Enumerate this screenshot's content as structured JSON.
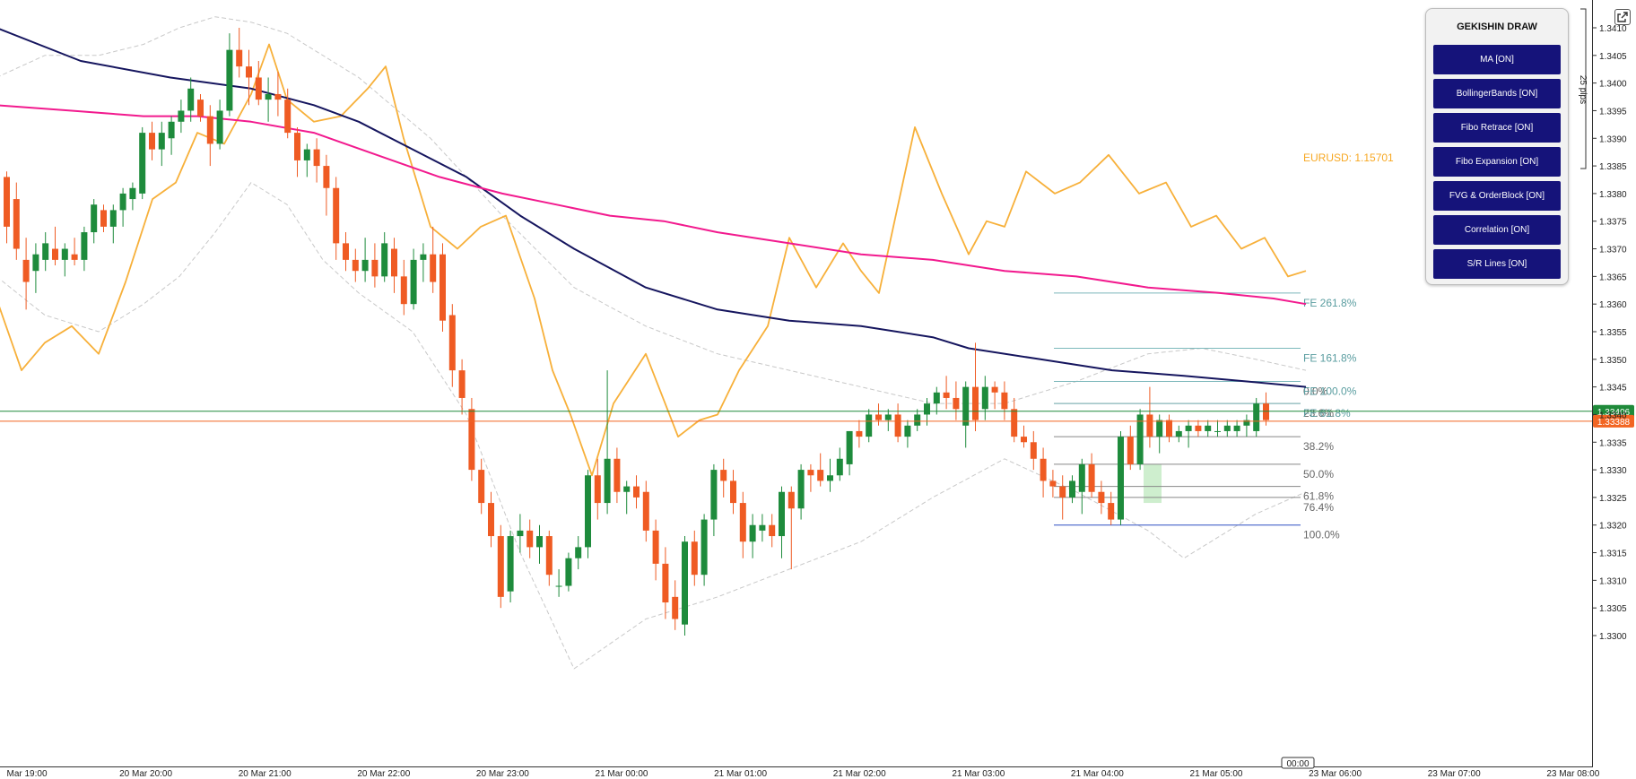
{
  "panel": {
    "title": "GEKISHIN DRAW",
    "buttons": [
      "MA [ON]",
      "BollingerBands [ON]",
      "Fibo Retrace [ON]",
      "Fibo Expansion [ON]",
      "FVG & OrderBlock [ON]",
      "Correlation [ON]",
      "S/R Lines [ON]"
    ]
  },
  "icons": {
    "popout": "popout-icon"
  },
  "chart_data": {
    "type": "candlestick",
    "ylim": [
      1.3297,
      1.3413
    ],
    "y_ticks": [
      "1.3410",
      "1.3405",
      "1.3400",
      "1.3395",
      "1.3390",
      "1.3385",
      "1.3380",
      "1.3375",
      "1.3370",
      "1.3365",
      "1.3360",
      "1.3355",
      "1.3350",
      "1.3345",
      "1.3340",
      "1.3335",
      "1.3330",
      "1.3325",
      "1.3320",
      "1.3315",
      "1.3310",
      "1.3305",
      "1.3300"
    ],
    "x_ticks": [
      "Mar 19:00",
      "20 Mar 20:00",
      "20 Mar 21:00",
      "20 Mar 22:00",
      "20 Mar 23:00",
      "21 Mar 00:00",
      "21 Mar 01:00",
      "21 Mar 02:00",
      "21 Mar 03:00",
      "21 Mar 04:00",
      "21 Mar 05:00",
      "23 Mar 06:00",
      "23 Mar 07:00",
      "23 Mar 08:00"
    ],
    "time_cursor_label": "00:00",
    "pips_label": "25 pips",
    "price_labels": [
      {
        "value": 1.33406,
        "text": "1.33406",
        "color": "#1f8a3a"
      },
      {
        "value": 1.33388,
        "text": "1.33388",
        "color": "#f26522"
      }
    ],
    "correlation_label": "EURUSD: 1.15701",
    "candles": [
      [
        1.3383,
        1.3384,
        1.3371,
        1.3374
      ],
      [
        1.3379,
        1.3382,
        1.3368,
        1.337
      ],
      [
        1.3368,
        1.3372,
        1.3359,
        1.3364
      ],
      [
        1.3366,
        1.3371,
        1.3362,
        1.3369
      ],
      [
        1.3368,
        1.3373,
        1.3366,
        1.3371
      ],
      [
        1.337,
        1.3374,
        1.3367,
        1.3368
      ],
      [
        1.3368,
        1.3371,
        1.3365,
        1.337
      ],
      [
        1.3369,
        1.3372,
        1.3367,
        1.3368
      ],
      [
        1.3368,
        1.3374,
        1.3366,
        1.3373
      ],
      [
        1.3373,
        1.3379,
        1.3371,
        1.3378
      ],
      [
        1.3377,
        1.3378,
        1.3373,
        1.3374
      ],
      [
        1.3374,
        1.3378,
        1.3371,
        1.3377
      ],
      [
        1.3377,
        1.3381,
        1.3374,
        1.338
      ],
      [
        1.3379,
        1.3382,
        1.3377,
        1.3381
      ],
      [
        1.338,
        1.3392,
        1.3379,
        1.3391
      ],
      [
        1.3391,
        1.3393,
        1.3386,
        1.3388
      ],
      [
        1.3388,
        1.3393,
        1.3385,
        1.3391
      ],
      [
        1.339,
        1.3394,
        1.3387,
        1.3393
      ],
      [
        1.3393,
        1.3397,
        1.3391,
        1.3395
      ],
      [
        1.3395,
        1.3401,
        1.3393,
        1.3399
      ],
      [
        1.3397,
        1.3398,
        1.3393,
        1.3394
      ],
      [
        1.3394,
        1.3396,
        1.3385,
        1.3389
      ],
      [
        1.3389,
        1.3397,
        1.3388,
        1.3395
      ],
      [
        1.3395,
        1.3409,
        1.3394,
        1.3406
      ],
      [
        1.3406,
        1.341,
        1.3401,
        1.3403
      ],
      [
        1.3403,
        1.3406,
        1.3396,
        1.3401
      ],
      [
        1.3401,
        1.3404,
        1.3396,
        1.3397
      ],
      [
        1.3397,
        1.3401,
        1.3393,
        1.3398
      ],
      [
        1.3398,
        1.3402,
        1.3394,
        1.3397
      ],
      [
        1.3397,
        1.3399,
        1.339,
        1.3391
      ],
      [
        1.3391,
        1.3392,
        1.3383,
        1.3386
      ],
      [
        1.3386,
        1.3389,
        1.3383,
        1.3388
      ],
      [
        1.3388,
        1.339,
        1.3382,
        1.3385
      ],
      [
        1.3385,
        1.3387,
        1.3376,
        1.3381
      ],
      [
        1.3381,
        1.3383,
        1.3368,
        1.3371
      ],
      [
        1.3371,
        1.3373,
        1.3366,
        1.3368
      ],
      [
        1.3368,
        1.337,
        1.3364,
        1.3366
      ],
      [
        1.3366,
        1.3372,
        1.3364,
        1.3368
      ],
      [
        1.3368,
        1.3371,
        1.3363,
        1.3365
      ],
      [
        1.3365,
        1.3373,
        1.3364,
        1.3371
      ],
      [
        1.337,
        1.3372,
        1.3362,
        1.3365
      ],
      [
        1.3365,
        1.3368,
        1.3358,
        1.336
      ],
      [
        1.336,
        1.337,
        1.3359,
        1.3368
      ],
      [
        1.3368,
        1.3371,
        1.3364,
        1.3369
      ],
      [
        1.3369,
        1.3374,
        1.3362,
        1.3364
      ],
      [
        1.3369,
        1.3371,
        1.3355,
        1.3357
      ],
      [
        1.3358,
        1.336,
        1.3345,
        1.3348
      ],
      [
        1.3348,
        1.335,
        1.334,
        1.3343
      ],
      [
        1.3341,
        1.3343,
        1.3328,
        1.333
      ],
      [
        1.333,
        1.3332,
        1.3322,
        1.3324
      ],
      [
        1.3324,
        1.3326,
        1.3316,
        1.3318
      ],
      [
        1.3318,
        1.332,
        1.3305,
        1.3307
      ],
      [
        1.3308,
        1.3319,
        1.3306,
        1.3318
      ],
      [
        1.3318,
        1.3322,
        1.3315,
        1.3319
      ],
      [
        1.3319,
        1.3321,
        1.3314,
        1.3316
      ],
      [
        1.3316,
        1.332,
        1.3313,
        1.3318
      ],
      [
        1.3318,
        1.3319,
        1.3309,
        1.3311
      ],
      [
        1.3309,
        1.3312,
        1.3307,
        1.3309
      ],
      [
        1.3309,
        1.3315,
        1.3308,
        1.3314
      ],
      [
        1.3314,
        1.3318,
        1.3312,
        1.3316
      ],
      [
        1.3316,
        1.333,
        1.3314,
        1.3329
      ],
      [
        1.3329,
        1.3332,
        1.3321,
        1.3324
      ],
      [
        1.3324,
        1.3348,
        1.3322,
        1.3332
      ],
      [
        1.3332,
        1.3334,
        1.3324,
        1.3326
      ],
      [
        1.3326,
        1.3328,
        1.3322,
        1.3327
      ],
      [
        1.3327,
        1.3329,
        1.3323,
        1.3325
      ],
      [
        1.3326,
        1.3328,
        1.3317,
        1.3319
      ],
      [
        1.3319,
        1.3321,
        1.331,
        1.3313
      ],
      [
        1.3313,
        1.3316,
        1.3303,
        1.3306
      ],
      [
        1.3307,
        1.331,
        1.3301,
        1.3303
      ],
      [
        1.3302,
        1.3318,
        1.33,
        1.3317
      ],
      [
        1.3317,
        1.3319,
        1.3309,
        1.3311
      ],
      [
        1.3311,
        1.3322,
        1.3309,
        1.3321
      ],
      [
        1.3321,
        1.3331,
        1.3318,
        1.333
      ],
      [
        1.333,
        1.3332,
        1.3325,
        1.3328
      ],
      [
        1.3328,
        1.333,
        1.3322,
        1.3324
      ],
      [
        1.3324,
        1.3326,
        1.3314,
        1.3317
      ],
      [
        1.3317,
        1.3322,
        1.3314,
        1.332
      ],
      [
        1.3319,
        1.3322,
        1.3317,
        1.332
      ],
      [
        1.332,
        1.3322,
        1.3316,
        1.3318
      ],
      [
        1.3318,
        1.3327,
        1.3314,
        1.3326
      ],
      [
        1.3326,
        1.3327,
        1.3312,
        1.3323
      ],
      [
        1.3323,
        1.3331,
        1.3321,
        1.333
      ],
      [
        1.333,
        1.3331,
        1.3326,
        1.3329
      ],
      [
        1.333,
        1.3333,
        1.3327,
        1.3328
      ],
      [
        1.3328,
        1.3332,
        1.3326,
        1.3329
      ],
      [
        1.3329,
        1.3334,
        1.3328,
        1.3332
      ],
      [
        1.3331,
        1.3337,
        1.3329,
        1.3337
      ],
      [
        1.3337,
        1.3339,
        1.3334,
        1.3336
      ],
      [
        1.3336,
        1.3341,
        1.3335,
        1.334
      ],
      [
        1.334,
        1.3342,
        1.3338,
        1.3339
      ],
      [
        1.3339,
        1.3341,
        1.3337,
        1.334
      ],
      [
        1.334,
        1.3342,
        1.3335,
        1.3336
      ],
      [
        1.3336,
        1.3339,
        1.3334,
        1.3338
      ],
      [
        1.3338,
        1.3341,
        1.3337,
        1.334
      ],
      [
        1.334,
        1.3343,
        1.3338,
        1.3342
      ],
      [
        1.3342,
        1.3345,
        1.334,
        1.3344
      ],
      [
        1.3344,
        1.3347,
        1.3341,
        1.3343
      ],
      [
        1.3343,
        1.3346,
        1.3339,
        1.3341
      ],
      [
        1.3338,
        1.3346,
        1.3334,
        1.3345
      ],
      [
        1.3345,
        1.3353,
        1.3337,
        1.3339
      ],
      [
        1.3341,
        1.3347,
        1.3339,
        1.3345
      ],
      [
        1.3345,
        1.3346,
        1.3341,
        1.3344
      ],
      [
        1.3344,
        1.3346,
        1.3339,
        1.3341
      ],
      [
        1.3341,
        1.3343,
        1.3335,
        1.3336
      ],
      [
        1.3336,
        1.3338,
        1.3334,
        1.3335
      ],
      [
        1.3335,
        1.3337,
        1.333,
        1.3332
      ],
      [
        1.3332,
        1.3334,
        1.3325,
        1.3328
      ],
      [
        1.3328,
        1.333,
        1.3325,
        1.3327
      ],
      [
        1.3327,
        1.3329,
        1.3321,
        1.3325
      ],
      [
        1.3325,
        1.3329,
        1.3324,
        1.3328
      ],
      [
        1.3326,
        1.3332,
        1.3322,
        1.3331
      ],
      [
        1.3331,
        1.3333,
        1.3325,
        1.3326
      ],
      [
        1.3326,
        1.3328,
        1.3322,
        1.3324
      ],
      [
        1.3324,
        1.3326,
        1.332,
        1.3321
      ],
      [
        1.3321,
        1.3337,
        1.332,
        1.3336
      ],
      [
        1.3336,
        1.3338,
        1.333,
        1.3331
      ],
      [
        1.3331,
        1.3341,
        1.333,
        1.334
      ],
      [
        1.334,
        1.3345,
        1.3334,
        1.3336
      ],
      [
        1.3336,
        1.334,
        1.3333,
        1.3339
      ],
      [
        1.3339,
        1.334,
        1.3335,
        1.3336
      ],
      [
        1.3336,
        1.3338,
        1.3335,
        1.3337
      ],
      [
        1.3337,
        1.3339,
        1.3334,
        1.3338
      ],
      [
        1.3338,
        1.3339,
        1.3336,
        1.3337
      ],
      [
        1.3337,
        1.3339,
        1.3336,
        1.3338
      ],
      [
        1.3337,
        1.3339,
        1.3336,
        1.3337
      ],
      [
        1.3337,
        1.3339,
        1.3336,
        1.3338
      ],
      [
        1.3337,
        1.3339,
        1.3336,
        1.3338
      ],
      [
        1.3338,
        1.334,
        1.3336,
        1.3339
      ],
      [
        1.3337,
        1.3343,
        1.3336,
        1.3342
      ],
      [
        1.3342,
        1.3344,
        1.3338,
        1.3339
      ]
    ],
    "ma_slow": [
      [
        -2,
        1.341
      ],
      [
        45,
        1.3404
      ],
      [
        95,
        1.3401
      ],
      [
        140,
        1.3399
      ],
      [
        175,
        1.3396
      ],
      [
        200,
        1.3393
      ],
      [
        230,
        1.3388
      ],
      [
        260,
        1.3383
      ],
      [
        290,
        1.3376
      ],
      [
        320,
        1.337
      ],
      [
        360,
        1.3363
      ],
      [
        400,
        1.3359
      ],
      [
        440,
        1.3357
      ],
      [
        480,
        1.3356
      ],
      [
        520,
        1.3354
      ],
      [
        540,
        1.3352
      ],
      [
        580,
        1.335
      ],
      [
        620,
        1.3348
      ],
      [
        660,
        1.3347
      ],
      [
        695,
        1.3346
      ],
      [
        728,
        1.3345
      ]
    ],
    "ma_fast": [
      [
        -2,
        1.3396
      ],
      [
        40,
        1.3395
      ],
      [
        80,
        1.3394
      ],
      [
        110,
        1.3394
      ],
      [
        140,
        1.3393
      ],
      [
        175,
        1.3391
      ],
      [
        210,
        1.3387
      ],
      [
        245,
        1.3383
      ],
      [
        280,
        1.338
      ],
      [
        310,
        1.3378
      ],
      [
        340,
        1.3376
      ],
      [
        370,
        1.3375
      ],
      [
        400,
        1.3373
      ],
      [
        440,
        1.3371
      ],
      [
        480,
        1.3369
      ],
      [
        520,
        1.3368
      ],
      [
        560,
        1.3366
      ],
      [
        600,
        1.3365
      ],
      [
        640,
        1.3363
      ],
      [
        680,
        1.3362
      ],
      [
        710,
        1.3361
      ],
      [
        728,
        1.336
      ]
    ],
    "bb_upper": [
      [
        -2,
        1.3401
      ],
      [
        25,
        1.3405
      ],
      [
        55,
        1.3405
      ],
      [
        80,
        1.3407
      ],
      [
        100,
        1.341
      ],
      [
        120,
        1.3412
      ],
      [
        140,
        1.3411
      ],
      [
        160,
        1.3409
      ],
      [
        200,
        1.3401
      ],
      [
        240,
        1.339
      ],
      [
        280,
        1.3376
      ],
      [
        320,
        1.3363
      ],
      [
        360,
        1.3356
      ],
      [
        400,
        1.3351
      ],
      [
        440,
        1.3348
      ],
      [
        480,
        1.3345
      ],
      [
        520,
        1.3342
      ],
      [
        560,
        1.3342
      ],
      [
        600,
        1.3346
      ],
      [
        640,
        1.3351
      ],
      [
        670,
        1.3352
      ],
      [
        700,
        1.335
      ],
      [
        728,
        1.3348
      ]
    ],
    "bb_lower": [
      [
        -2,
        1.3365
      ],
      [
        25,
        1.3358
      ],
      [
        55,
        1.3355
      ],
      [
        80,
        1.336
      ],
      [
        100,
        1.3365
      ],
      [
        120,
        1.3373
      ],
      [
        140,
        1.3382
      ],
      [
        160,
        1.3378
      ],
      [
        180,
        1.3368
      ],
      [
        200,
        1.3362
      ],
      [
        230,
        1.3355
      ],
      [
        260,
        1.334
      ],
      [
        290,
        1.3315
      ],
      [
        320,
        1.3294
      ],
      [
        360,
        1.3303
      ],
      [
        400,
        1.3307
      ],
      [
        440,
        1.3312
      ],
      [
        480,
        1.3317
      ],
      [
        520,
        1.3325
      ],
      [
        560,
        1.3332
      ],
      [
        600,
        1.3326
      ],
      [
        640,
        1.3319
      ],
      [
        660,
        1.3314
      ],
      [
        680,
        1.3318
      ],
      [
        700,
        1.3322
      ],
      [
        728,
        1.3326
      ]
    ],
    "correlation_line": [
      [
        -2,
        1.3361
      ],
      [
        12,
        1.3348
      ],
      [
        25,
        1.3353
      ],
      [
        40,
        1.3356
      ],
      [
        55,
        1.3351
      ],
      [
        70,
        1.3364
      ],
      [
        85,
        1.3379
      ],
      [
        98,
        1.3382
      ],
      [
        110,
        1.3391
      ],
      [
        125,
        1.3389
      ],
      [
        140,
        1.3398
      ],
      [
        150,
        1.3407
      ],
      [
        160,
        1.3397
      ],
      [
        175,
        1.3393
      ],
      [
        190,
        1.3394
      ],
      [
        205,
        1.3399
      ],
      [
        215,
        1.3403
      ],
      [
        225,
        1.339
      ],
      [
        240,
        1.3374
      ],
      [
        255,
        1.337
      ],
      [
        268,
        1.3374
      ],
      [
        282,
        1.3376
      ],
      [
        298,
        1.3361
      ],
      [
        308,
        1.3348
      ],
      [
        318,
        1.334
      ],
      [
        330,
        1.3329
      ],
      [
        342,
        1.3342
      ],
      [
        360,
        1.3351
      ],
      [
        378,
        1.3336
      ],
      [
        390,
        1.3339
      ],
      [
        400,
        1.334
      ],
      [
        412,
        1.3348
      ],
      [
        428,
        1.3356
      ],
      [
        440,
        1.3372
      ],
      [
        455,
        1.3363
      ],
      [
        470,
        1.3371
      ],
      [
        480,
        1.3366
      ],
      [
        490,
        1.3362
      ],
      [
        510,
        1.3392
      ],
      [
        525,
        1.338
      ],
      [
        540,
        1.3369
      ],
      [
        550,
        1.3375
      ],
      [
        560,
        1.3374
      ],
      [
        572,
        1.3384
      ],
      [
        588,
        1.338
      ],
      [
        602,
        1.3382
      ],
      [
        618,
        1.3387
      ],
      [
        635,
        1.338
      ],
      [
        650,
        1.3382
      ],
      [
        664,
        1.3374
      ],
      [
        678,
        1.3376
      ],
      [
        692,
        1.337
      ],
      [
        705,
        1.3372
      ],
      [
        718,
        1.3365
      ],
      [
        728,
        1.3366
      ]
    ],
    "fibo_retrace": [
      {
        "level": 1.3346,
        "label": "0.0%"
      },
      {
        "level": 1.3342,
        "label": "23.6%"
      },
      {
        "level": 1.3336,
        "label": "38.2%"
      },
      {
        "level": 1.3331,
        "label": "50.0%"
      },
      {
        "level": 1.3327,
        "label": "61.8%"
      },
      {
        "level": 1.3325,
        "label": "76.4%"
      },
      {
        "level": 1.332,
        "label": "100.0%"
      }
    ],
    "fibo_expansion": [
      {
        "level": 1.3362,
        "label": "FE 261.8%"
      },
      {
        "level": 1.3352,
        "label": "FE 161.8%"
      },
      {
        "level": 1.3346,
        "label": "FE 100.0%"
      },
      {
        "level": 1.3342,
        "label": "FE 61.8%"
      }
    ]
  }
}
